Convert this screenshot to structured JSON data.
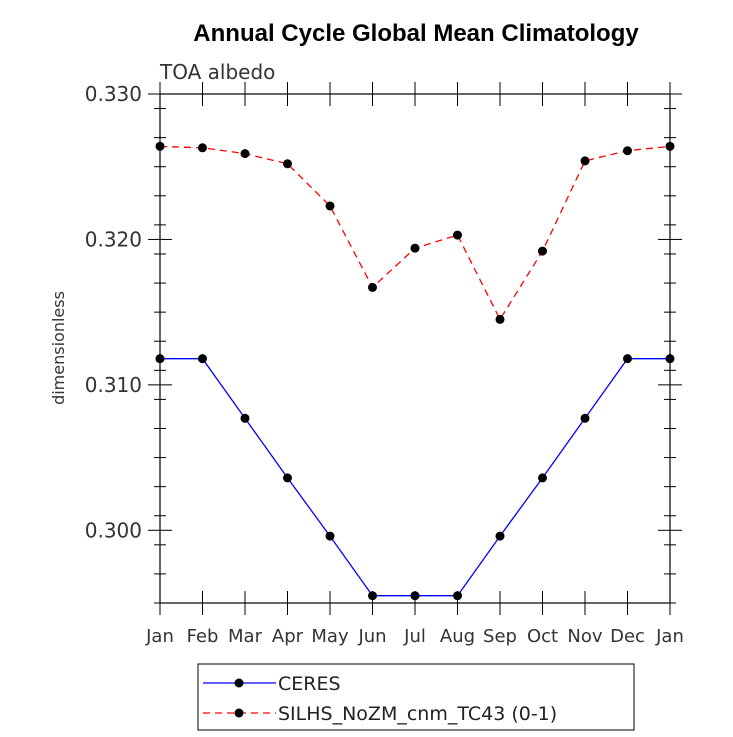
{
  "chart_data": {
    "type": "line",
    "title": "Annual Cycle Global Mean Climatology",
    "subtitle": "TOA albedo",
    "xlabel": "",
    "ylabel": "dimensionless",
    "ylim": [
      0.295,
      0.33
    ],
    "yticks": [
      0.3,
      0.31,
      0.32,
      0.33
    ],
    "ytick_labels": [
      "0.300",
      "0.310",
      "0.320",
      "0.330"
    ],
    "categories": [
      "Jan",
      "Feb",
      "Mar",
      "Apr",
      "May",
      "Jun",
      "Jul",
      "Aug",
      "Sep",
      "Oct",
      "Nov",
      "Dec",
      "Jan"
    ],
    "series": [
      {
        "name": "CERES",
        "color": "#0000ff",
        "dash": "solid",
        "values": [
          0.3118,
          0.3118,
          0.3077,
          0.3036,
          0.2996,
          0.2955,
          0.2955,
          0.2955,
          0.2996,
          0.3036,
          0.3077,
          0.3118,
          0.3118
        ]
      },
      {
        "name": "SILHS_NoZM_cnm_TC43 (0-1)",
        "color": "#ff0000",
        "dash": "dashed",
        "values": [
          0.3264,
          0.3263,
          0.3259,
          0.3252,
          0.3223,
          0.3167,
          0.3194,
          0.3203,
          0.3145,
          0.3192,
          0.3254,
          0.3261,
          0.3264
        ]
      }
    ],
    "grid": false,
    "legend_position": "bottom"
  }
}
